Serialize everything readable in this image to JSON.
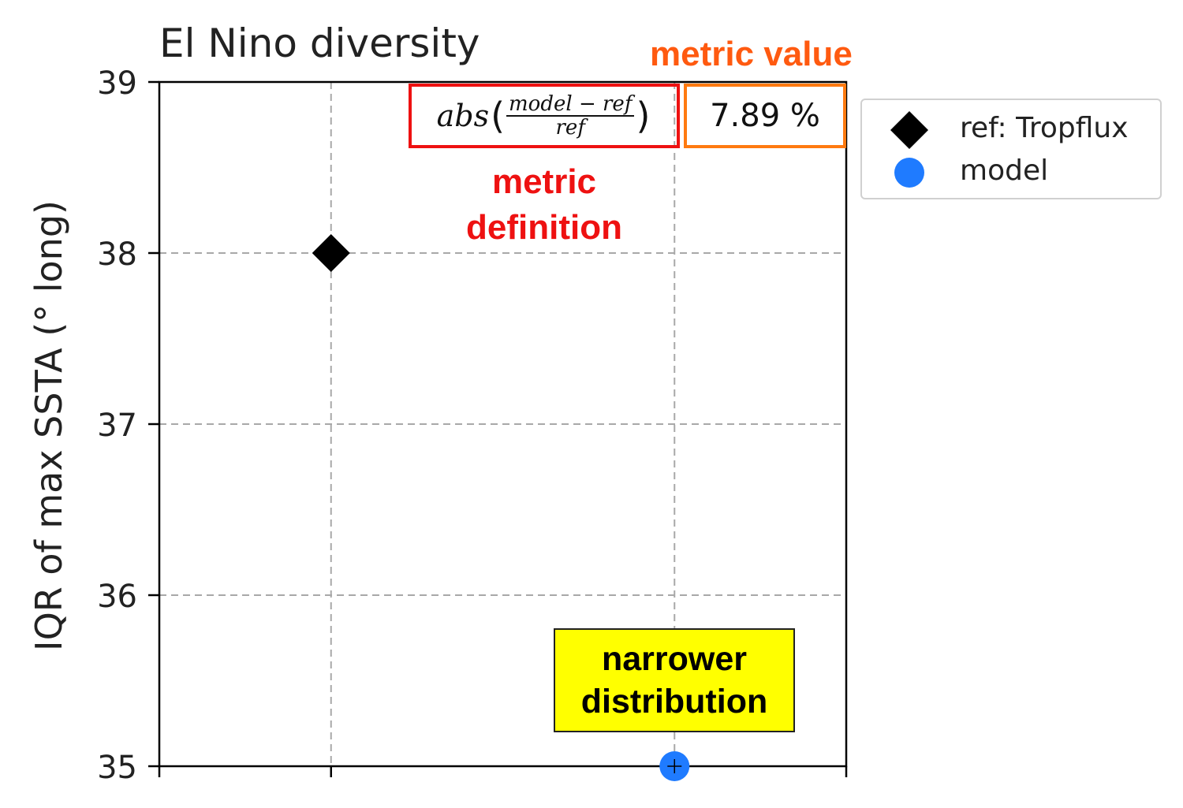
{
  "chart_data": {
    "type": "scatter",
    "title": "El Nino diversity",
    "ylabel": "IQR of max SSTA (° long)",
    "xlabel": "",
    "ylim": [
      35,
      39
    ],
    "xlim": [
      0,
      4
    ],
    "yticks": [
      "35",
      "36",
      "37",
      "38",
      "39"
    ],
    "grid": true,
    "legend_position": "outside-right-top",
    "series": [
      {
        "name": "ref: Tropflux",
        "marker": "diamond",
        "color": "#000000",
        "x": [
          1
        ],
        "y": [
          38
        ]
      },
      {
        "name": "model",
        "marker": "circle",
        "color": "#1f7bff",
        "x": [
          3
        ],
        "y": [
          35
        ]
      }
    ],
    "metric": {
      "formula_parts": {
        "fn": "abs",
        "numerator": "model − ref",
        "denominator": "ref"
      },
      "value": "7.89 %"
    },
    "annotations": {
      "metric_value_label": "metric value",
      "metric_definition_label": [
        "metric",
        "definition"
      ],
      "note": [
        "narrower",
        "distribution"
      ]
    }
  }
}
